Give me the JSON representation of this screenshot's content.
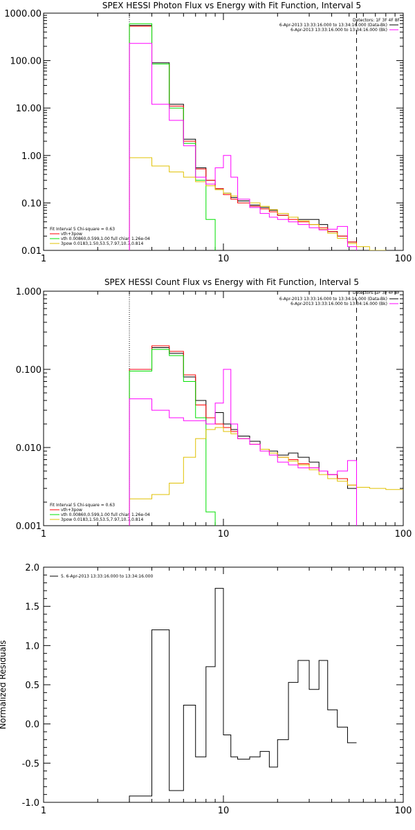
{
  "colors": {
    "total": "#000000",
    "fit": "#ff0000",
    "thermal": "#00e000",
    "powerlaw": "#e0c000",
    "background": "#ff00ff"
  },
  "chart_data": [
    {
      "type": "line",
      "title": "SPEX HESSI Photon Flux vs Energy with Fit Function, Interval 5",
      "xlabel": "",
      "ylabel": "",
      "xscale": "log",
      "yscale": "log",
      "xlim": [
        1,
        100
      ],
      "ylim": [
        0.01,
        1000
      ],
      "x_ticks": [
        "1",
        "10",
        "100"
      ],
      "y_ticks": [
        "0.01",
        "0.10",
        "1.00",
        "10.00",
        "100.00",
        "1000.00"
      ],
      "header_lines": [
        "Detectors: 1F 3F 4F 8F",
        "6-Apr-2013 13:33:16.000 to 13:34:16.000 (Data-Bk)",
        "6-Apr-2013 13:33:16.000 to 13:34:16.000 (Bk)"
      ],
      "fit_lines": [
        "Fit Interval 5   Chi-square = 0.63",
        "vth+3pow",
        "vth 0.00860,0.599,1.00   full chian 1.26e-04",
        "3pow 0.0183,1.50,53.5,7.97,10.7,0.814"
      ],
      "vlines": [
        {
          "x": 3.0,
          "style": "dotted"
        },
        {
          "x": 55,
          "style": "dashed"
        }
      ],
      "edges": [
        3.0,
        4.0,
        5.0,
        6.0,
        7.0,
        8.0,
        9.0,
        10.0,
        11.0,
        12.0,
        14.0,
        16.0,
        18.0,
        20.0,
        23.0,
        26.0,
        30.0,
        34.0,
        38.0,
        43.0,
        49.0,
        55.0,
        65.0,
        80.0,
        100.0
      ],
      "series": [
        {
          "key": "total",
          "values": [
            550,
            90,
            12,
            2.2,
            0.55,
            0.3,
            0.2,
            0.16,
            0.13,
            0.11,
            0.09,
            0.08,
            0.07,
            0.055,
            0.05,
            0.045,
            0.045,
            0.035,
            0.025,
            0.02,
            0.015,
            null,
            null,
            null
          ]
        },
        {
          "key": "fit",
          "values": [
            530,
            85,
            11,
            2.0,
            0.52,
            0.3,
            0.2,
            0.15,
            0.12,
            0.1,
            0.085,
            0.075,
            0.065,
            0.055,
            0.045,
            0.04,
            0.035,
            0.03,
            0.025,
            0.02,
            0.015,
            null,
            null,
            null
          ]
        },
        {
          "key": "thermal",
          "values": [
            600,
            85,
            10,
            1.8,
            0.3,
            0.045,
            0.009,
            null,
            null,
            null,
            null,
            null,
            null,
            null,
            null,
            null,
            null,
            null,
            null,
            null,
            null,
            null,
            null,
            null
          ]
        },
        {
          "key": "powerlaw",
          "values": [
            0.9,
            0.6,
            0.45,
            0.35,
            0.28,
            0.23,
            0.19,
            0.16,
            0.14,
            0.12,
            0.1,
            0.085,
            0.072,
            0.06,
            0.05,
            0.042,
            0.035,
            0.028,
            0.023,
            0.018,
            0.014,
            0.012,
            0.01,
            0.009
          ]
        },
        {
          "key": "background",
          "values": [
            230,
            12,
            5.5,
            1.6,
            0.35,
            0.25,
            0.55,
            1.0,
            0.35,
            0.12,
            0.08,
            0.06,
            0.05,
            0.045,
            0.04,
            0.035,
            0.03,
            0.027,
            0.028,
            0.032,
            0.012,
            null,
            null,
            null
          ]
        }
      ]
    },
    {
      "type": "line",
      "title": "SPEX HESSI Count Flux vs Energy with Fit Function, Interval 5",
      "xlabel": "",
      "ylabel": "",
      "xscale": "log",
      "yscale": "log",
      "xlim": [
        1,
        100
      ],
      "ylim": [
        0.001,
        1
      ],
      "x_ticks": [
        "1",
        "10",
        "100"
      ],
      "y_ticks": [
        "0.001",
        "0.010",
        "0.100",
        "1.000"
      ],
      "header_lines": [
        "Detectors: 1F 3F 4F 8F",
        "6-Apr-2013 13:33:16.000 to 13:34:16.000 (Data-Bk)",
        "6-Apr-2013 13:33:16.000 to 13:34:16.000 (Bk)"
      ],
      "fit_lines": [
        "Fit Interval 5   Chi-square = 0.63",
        "vth+3pow",
        "vth 0.00860,0.599,1.00   full chian 1.26e-04",
        "3pow 0.0183,1.50,53.5,7.97,10.7,0.814"
      ],
      "vlines": [
        {
          "x": 3.0,
          "style": "dotted"
        },
        {
          "x": 55,
          "style": "dashed"
        }
      ],
      "edges": [
        3.0,
        4.0,
        5.0,
        6.0,
        7.0,
        8.0,
        9.0,
        10.0,
        11.0,
        12.0,
        14.0,
        16.0,
        18.0,
        20.0,
        23.0,
        26.0,
        30.0,
        34.0,
        38.0,
        43.0,
        49.0,
        55.0,
        65.0,
        80.0,
        100.0
      ],
      "series": [
        {
          "key": "total",
          "values": [
            0.1,
            0.19,
            0.16,
            0.08,
            0.04,
            0.02,
            0.028,
            0.02,
            0.017,
            0.014,
            0.012,
            0.0095,
            0.009,
            0.008,
            0.0085,
            0.0075,
            0.0065,
            0.005,
            0.0045,
            0.004,
            0.003,
            null,
            null,
            null
          ]
        },
        {
          "key": "fit",
          "values": [
            0.1,
            0.2,
            0.17,
            0.085,
            0.035,
            0.024,
            0.02,
            0.018,
            0.016,
            0.013,
            0.011,
            0.0095,
            0.0085,
            0.0075,
            0.007,
            0.0062,
            0.0055,
            0.005,
            0.0045,
            0.004,
            0.0033,
            null,
            null,
            null
          ]
        },
        {
          "key": "thermal",
          "values": [
            0.095,
            0.18,
            0.15,
            0.07,
            0.024,
            0.0015,
            null,
            null,
            null,
            null,
            null,
            null,
            null,
            null,
            null,
            null,
            null,
            null,
            null,
            null,
            null,
            null,
            null,
            null
          ]
        },
        {
          "key": "powerlaw",
          "values": [
            0.0022,
            0.0025,
            0.0035,
            0.0075,
            0.013,
            0.017,
            0.018,
            0.016,
            0.015,
            0.013,
            0.011,
            0.0095,
            0.0085,
            0.0075,
            0.0067,
            0.006,
            0.0052,
            0.0045,
            0.004,
            0.0037,
            0.0033,
            0.0031,
            0.003,
            0.0029
          ]
        },
        {
          "key": "background",
          "values": [
            0.042,
            0.03,
            0.024,
            0.022,
            0.022,
            0.02,
            0.037,
            0.1,
            0.02,
            0.013,
            0.011,
            0.009,
            0.008,
            0.0065,
            0.006,
            0.0055,
            0.0055,
            0.005,
            0.0045,
            0.005,
            0.0068,
            null,
            null,
            null
          ]
        }
      ]
    },
    {
      "type": "line",
      "title": "",
      "xlabel": "",
      "ylabel": "Normalized Residuals",
      "xscale": "log",
      "yscale": "linear",
      "xlim": [
        1,
        100
      ],
      "ylim": [
        -1.0,
        2.0
      ],
      "x_ticks": [
        "1",
        "10",
        "100"
      ],
      "y_ticks": [
        "-1.0",
        "-0.5",
        "0.0",
        "0.5",
        "1.0",
        "1.5",
        "2.0"
      ],
      "legend": "5.  6-Apr-2013 13:33:16.000 to 13:34:16.000",
      "edges": [
        3.0,
        4.0,
        5.0,
        6.0,
        7.0,
        8.0,
        9.0,
        10.0,
        11.0,
        12.0,
        14.0,
        16.0,
        18.0,
        20.0,
        23.0,
        26.0,
        30.0,
        34.0,
        38.0,
        43.0,
        49.0,
        55.0
      ],
      "series": [
        {
          "key": "total",
          "values": [
            -0.92,
            1.2,
            -0.85,
            0.24,
            -0.42,
            0.73,
            1.73,
            -0.14,
            -0.42,
            -0.45,
            -0.42,
            -0.35,
            -0.55,
            -0.2,
            0.53,
            0.81,
            0.44,
            0.81,
            0.18,
            -0.04,
            -0.24,
            -0.24
          ]
        }
      ]
    }
  ]
}
